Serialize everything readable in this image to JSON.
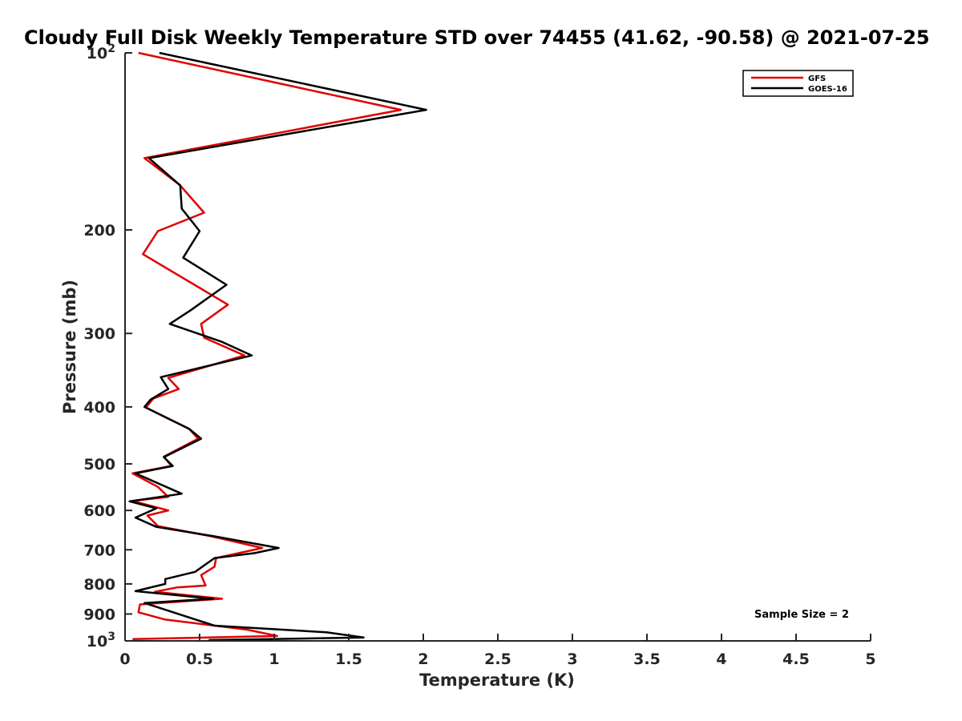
{
  "chart_data": {
    "type": "line",
    "title": "Cloudy Full Disk Weekly Temperature STD over 74455 (41.62, -90.58) @ 2021-07-25",
    "xlabel": "Temperature (K)",
    "ylabel": "Pressure (mb)",
    "xlim": [
      0,
      5
    ],
    "ylim": [
      100,
      1000
    ],
    "y_scale": "log",
    "y_reversed": true,
    "x_ticks": [
      "0",
      "0.5",
      "1",
      "1.5",
      "2",
      "2.5",
      "3",
      "3.5",
      "4",
      "4.5",
      "5"
    ],
    "y_ticks": [
      {
        "value": 100,
        "base": "10",
        "exp": "2"
      },
      {
        "value": 200,
        "label": "200"
      },
      {
        "value": 300,
        "label": "300"
      },
      {
        "value": 400,
        "label": "400"
      },
      {
        "value": 500,
        "label": "500"
      },
      {
        "value": 600,
        "label": "600"
      },
      {
        "value": 700,
        "label": "700"
      },
      {
        "value": 800,
        "label": "800"
      },
      {
        "value": 900,
        "label": "900"
      },
      {
        "value": 1000,
        "base": "10",
        "exp": "3"
      }
    ],
    "grid": false,
    "legend_position": "top-right",
    "annotation": "Sample Size = 2",
    "series": [
      {
        "name": "GFS",
        "color": "#e00000",
        "points": [
          [
            0.09,
            100
          ],
          [
            1.85,
            125
          ],
          [
            0.13,
            151
          ],
          [
            0.37,
            168
          ],
          [
            0.53,
            187
          ],
          [
            0.22,
            201
          ],
          [
            0.12,
            220
          ],
          [
            0.69,
            268
          ],
          [
            0.51,
            289
          ],
          [
            0.53,
            305
          ],
          [
            0.8,
            327
          ],
          [
            0.29,
            357
          ],
          [
            0.36,
            373
          ],
          [
            0.19,
            387
          ],
          [
            0.14,
            401
          ],
          [
            0.43,
            436
          ],
          [
            0.49,
            453
          ],
          [
            0.26,
            486
          ],
          [
            0.31,
            504
          ],
          [
            0.05,
            519
          ],
          [
            0.22,
            547
          ],
          [
            0.29,
            569
          ],
          [
            0.05,
            578
          ],
          [
            0.29,
            600
          ],
          [
            0.15,
            612
          ],
          [
            0.22,
            638
          ],
          [
            0.58,
            664
          ],
          [
            0.92,
            695
          ],
          [
            0.61,
            723
          ],
          [
            0.6,
            748
          ],
          [
            0.51,
            773
          ],
          [
            0.54,
            805
          ],
          [
            0.35,
            811
          ],
          [
            0.2,
            825
          ],
          [
            0.65,
            848
          ],
          [
            0.1,
            867
          ],
          [
            0.09,
            894
          ],
          [
            0.27,
            920
          ],
          [
            0.82,
            957
          ],
          [
            1.02,
            981
          ],
          [
            0.05,
            993
          ]
        ]
      },
      {
        "name": "GOES-16",
        "color": "#000000",
        "points": [
          [
            0.23,
            100
          ],
          [
            2.02,
            125
          ],
          [
            0.16,
            151
          ],
          [
            0.37,
            168
          ],
          [
            0.38,
            184
          ],
          [
            0.5,
            201
          ],
          [
            0.39,
            223
          ],
          [
            0.68,
            248
          ],
          [
            0.44,
            274
          ],
          [
            0.3,
            289
          ],
          [
            0.65,
            310
          ],
          [
            0.85,
            327
          ],
          [
            0.24,
            356
          ],
          [
            0.29,
            373
          ],
          [
            0.17,
            389
          ],
          [
            0.13,
            400
          ],
          [
            0.43,
            436
          ],
          [
            0.51,
            453
          ],
          [
            0.26,
            487
          ],
          [
            0.32,
            504
          ],
          [
            0.07,
            519
          ],
          [
            0.38,
            562
          ],
          [
            0.03,
            579
          ],
          [
            0.21,
            595
          ],
          [
            0.07,
            617
          ],
          [
            0.21,
            640
          ],
          [
            0.6,
            664
          ],
          [
            1.03,
            695
          ],
          [
            0.87,
            709
          ],
          [
            0.6,
            723
          ],
          [
            0.47,
            763
          ],
          [
            0.27,
            785
          ],
          [
            0.27,
            800
          ],
          [
            0.07,
            823
          ],
          [
            0.59,
            848
          ],
          [
            0.13,
            862
          ],
          [
            0.6,
            942
          ],
          [
            1.35,
            967
          ],
          [
            1.6,
            987
          ],
          [
            0.56,
            997
          ]
        ]
      }
    ]
  }
}
